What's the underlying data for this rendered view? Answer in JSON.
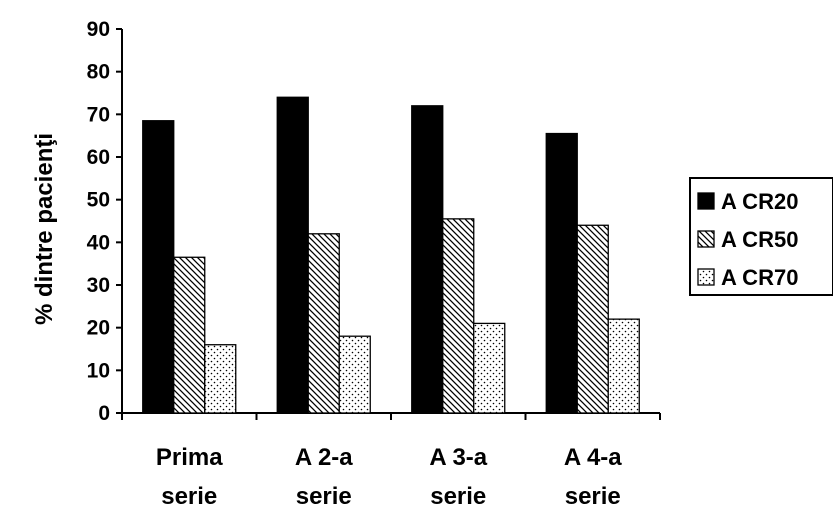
{
  "chart_data": {
    "type": "bar",
    "categories": [
      [
        "Prima",
        "serie"
      ],
      [
        "A 2-a",
        "serie"
      ],
      [
        "A 3-a",
        "serie"
      ],
      [
        "A 4-a",
        "serie"
      ]
    ],
    "series": [
      {
        "name": "A CR20",
        "values": [
          68.5,
          74,
          72,
          65.5
        ],
        "pattern": "solid"
      },
      {
        "name": "A CR50",
        "values": [
          36.5,
          42,
          45.5,
          44
        ],
        "pattern": "hatch"
      },
      {
        "name": "A CR70",
        "values": [
          16,
          18,
          21,
          22
        ],
        "pattern": "dots"
      }
    ],
    "title": "",
    "xlabel": "",
    "ylabel": "% dintre pacienţi",
    "ylim": [
      0,
      90
    ],
    "yticks": [
      0,
      10,
      20,
      30,
      40,
      50,
      60,
      70,
      80,
      90
    ],
    "grid": false,
    "legend_position": "right"
  }
}
